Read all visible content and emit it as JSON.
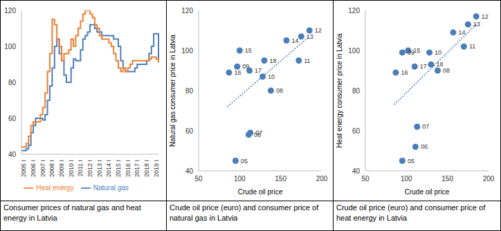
{
  "chart_data": [
    {
      "type": "line",
      "title": "Consumer prices of natural gas and heat energy in Latvia",
      "categories": [
        "2005 I",
        null,
        null,
        null,
        "2006 I",
        null,
        null,
        null,
        "2007 I",
        null,
        null,
        null,
        "2008 I",
        null,
        null,
        null,
        "2009 I",
        null,
        null,
        null,
        "2010 I",
        null,
        null,
        null,
        "2011 I",
        null,
        null,
        null,
        "2012 I",
        null,
        null,
        null,
        "2013 I",
        null,
        null,
        null,
        "2014 I",
        null,
        null,
        null,
        "2015 I",
        null,
        null,
        null,
        "2016 I",
        null,
        null,
        null,
        "2017 I",
        null,
        null,
        null,
        "2018 I",
        null,
        null,
        null,
        "2019 I",
        null,
        null
      ],
      "series": [
        {
          "name": "Natural gas",
          "color": "#4a7ebb",
          "values": [
            42,
            42,
            43,
            45,
            52,
            56,
            60,
            60,
            60,
            59,
            62,
            70,
            78,
            88,
            100,
            104,
            96,
            92,
            84,
            80,
            80,
            88,
            93,
            92,
            92,
            98,
            104,
            106,
            108,
            112,
            112,
            110,
            108,
            108,
            106,
            106,
            106,
            106,
            106,
            104,
            104,
            100,
            92,
            88,
            86,
            86,
            86,
            86,
            88,
            90,
            90,
            90,
            90,
            92,
            96,
            100,
            107,
            107,
            92
          ]
        },
        {
          "name": "Heat energy",
          "color": "#ed7d31",
          "values": [
            44,
            44,
            46,
            50,
            56,
            58,
            58,
            58,
            62,
            66,
            74,
            86,
            96,
            115,
            112,
            104,
            100,
            92,
            96,
            96,
            98,
            104,
            100,
            106,
            110,
            114,
            118,
            120,
            120,
            118,
            116,
            112,
            110,
            106,
            104,
            104,
            104,
            102,
            100,
            96,
            92,
            88,
            86,
            88,
            86,
            88,
            90,
            92,
            92,
            92,
            92,
            92,
            92,
            92,
            93,
            94,
            94,
            93,
            91
          ]
        }
      ],
      "ylim": [
        40,
        120
      ],
      "yticks": [
        40,
        60,
        80,
        100,
        120
      ],
      "legend": "bottom"
    },
    {
      "type": "scatter",
      "title": "Crude oil price (euro) and consumer price of natural gas in Latvia",
      "x_label": "Crude oil price",
      "y_label": "Natural gas consumer price in Latvia",
      "x": [
        95,
        111,
        113,
        138,
        97,
        128,
        172,
        185,
        175,
        157,
        100,
        87,
        112,
        130
      ],
      "values": [
        45,
        58,
        59,
        80,
        92,
        87,
        95,
        110,
        107,
        105,
        100,
        89,
        90,
        95
      ],
      "point_labels": [
        "05",
        "06",
        "07",
        "08",
        "09",
        "10",
        "11",
        "12",
        "13",
        "14",
        "15",
        "16",
        "17",
        "18"
      ],
      "color": "#4a7ebb",
      "marker": "circle",
      "trendline": {
        "x": [
          85,
          185
        ],
        "values": [
          72,
          107
        ],
        "line_style": "dotted"
      },
      "xlim": [
        50,
        200
      ],
      "xticks": [
        50,
        100,
        150,
        200
      ],
      "ylim": [
        40,
        120
      ],
      "yticks": [
        40,
        60,
        80,
        100,
        120
      ]
    },
    {
      "type": "scatter",
      "title": "Crude oil price (euro) and consumer price of heat energy in Latvia",
      "x_label": "Crude oil price",
      "y_label": "Heat energy consumer price in Latvia",
      "x": [
        95,
        111,
        113,
        138,
        95,
        128,
        170,
        185,
        175,
        157,
        102,
        87,
        110,
        130
      ],
      "values": [
        45,
        52,
        62,
        90,
        99,
        99,
        102,
        117,
        113,
        109,
        100,
        89,
        92,
        93
      ],
      "point_labels": [
        "05",
        "06",
        "07",
        "08",
        "09",
        "10",
        "11",
        "12",
        "13",
        "14",
        "15",
        "16",
        "17",
        "18"
      ],
      "color": "#4a7ebb",
      "marker": "circle",
      "trendline": {
        "x": [
          85,
          185
        ],
        "values": [
          73,
          113
        ],
        "line_style": "dotted"
      },
      "xlim": [
        50,
        200
      ],
      "xticks": [
        50,
        100,
        150,
        200
      ],
      "ylim": [
        40,
        120
      ],
      "yticks": [
        40,
        60,
        80,
        100,
        120
      ]
    }
  ]
}
